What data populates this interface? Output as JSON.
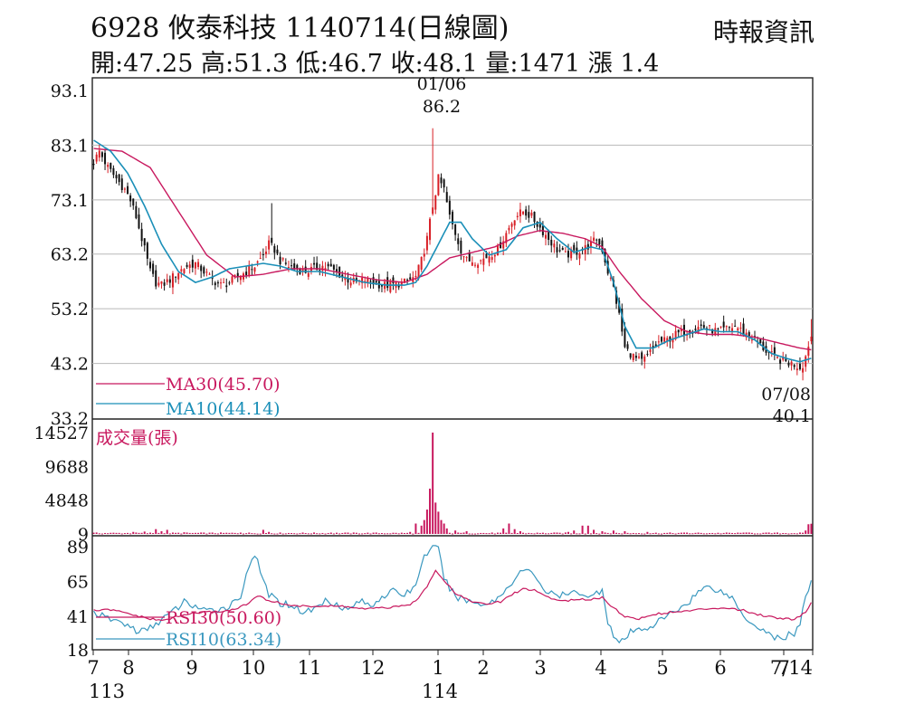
{
  "header": {
    "title": "6928  攸泰科技 1140714(日線圖)",
    "source": "時報資訊",
    "ohlc": "開:47.25 高:51.3 低:46.7 收:48.1 量:1471 漲 1.4"
  },
  "colors": {
    "up": "#d81f26",
    "down": "#111111",
    "ma30": "#c8185e",
    "ma10": "#1a8fb8",
    "volume": "#c8185e",
    "rsi30": "#c8185e",
    "rsi10": "#3a98bf",
    "grid": "#b8b8b8"
  },
  "chart_data": [
    {
      "type": "candlestick",
      "panel": "price",
      "y_ticks": [
        "93.1",
        "83.1",
        "73.1",
        "63.2",
        "53.2",
        "43.2",
        "33.2"
      ],
      "y_tick_values": [
        93.1,
        83.1,
        73.1,
        63.2,
        53.2,
        43.2,
        33.2
      ],
      "ylim": [
        33.2,
        93.1
      ],
      "x_ticks": [
        "7",
        "8",
        "9",
        "10",
        "11",
        "12",
        "1",
        "2",
        "3",
        "4",
        "5",
        "6",
        "7",
        "7/14"
      ],
      "x_subticks": [
        "113",
        "114"
      ],
      "grid": true,
      "annotations": [
        {
          "date": "01/06",
          "value": "86.2",
          "label_date": "01/06",
          "label_value": "86.2"
        },
        {
          "date": "07/08",
          "value": "40.1",
          "label_date": "07/08",
          "label_value": "40.1"
        }
      ],
      "legend": [
        {
          "label": "MA30(45.70)",
          "color": "#c8185e"
        },
        {
          "label": "MA10(44.14)",
          "color": "#1a8fb8"
        }
      ],
      "anchors_close": [
        [
          0,
          80
        ],
        [
          2,
          82
        ],
        [
          5,
          79
        ],
        [
          8,
          77
        ],
        [
          11,
          75
        ],
        [
          13,
          73
        ],
        [
          15,
          70
        ],
        [
          17,
          66
        ],
        [
          20,
          60
        ],
        [
          22,
          58
        ],
        [
          24,
          57.5
        ],
        [
          27,
          58.5
        ],
        [
          30,
          60
        ],
        [
          33,
          61
        ],
        [
          36,
          61.5
        ],
        [
          39,
          60
        ],
        [
          42,
          58.5
        ],
        [
          45,
          57.5
        ],
        [
          48,
          58
        ],
        [
          51,
          59
        ],
        [
          54,
          60
        ],
        [
          57,
          61
        ],
        [
          60,
          63
        ],
        [
          62,
          65
        ],
        [
          64,
          64
        ],
        [
          66,
          62
        ],
        [
          69,
          61
        ],
        [
          72,
          60.5
        ],
        [
          75,
          60
        ],
        [
          78,
          60.5
        ],
        [
          81,
          61
        ],
        [
          84,
          60.5
        ],
        [
          87,
          59.5
        ],
        [
          90,
          58.5
        ],
        [
          93,
          58
        ],
        [
          96,
          58.5
        ],
        [
          99,
          58
        ],
        [
          102,
          57.5
        ],
        [
          105,
          57.5
        ],
        [
          108,
          57.8
        ],
        [
          110,
          58
        ],
        [
          112,
          58.5
        ],
        [
          114,
          59
        ],
        [
          116,
          62
        ],
        [
          118,
          66
        ],
        [
          120,
          72
        ],
        [
          122,
          77
        ],
        [
          124,
          75
        ],
        [
          126,
          70
        ],
        [
          128,
          67
        ],
        [
          130,
          64
        ],
        [
          132,
          62
        ],
        [
          134,
          62
        ],
        [
          137,
          62
        ],
        [
          140,
          63
        ],
        [
          143,
          64
        ],
        [
          146,
          67
        ],
        [
          149,
          70
        ],
        [
          152,
          71
        ],
        [
          155,
          70
        ],
        [
          158,
          68
        ],
        [
          161,
          66
        ],
        [
          164,
          64
        ],
        [
          167,
          63
        ],
        [
          170,
          63.5
        ],
        [
          173,
          64
        ],
        [
          176,
          65
        ],
        [
          178,
          66
        ],
        [
          180,
          64
        ],
        [
          182,
          60
        ],
        [
          184,
          57
        ],
        [
          186,
          52
        ],
        [
          188,
          46
        ],
        [
          190,
          45
        ],
        [
          192,
          44
        ],
        [
          194,
          43.5
        ],
        [
          196,
          44.5
        ],
        [
          198,
          46
        ],
        [
          200,
          47
        ],
        [
          203,
          47.5
        ],
        [
          206,
          48.5
        ],
        [
          209,
          49
        ],
        [
          212,
          49.5
        ],
        [
          215,
          50
        ],
        [
          218,
          49.5
        ],
        [
          221,
          49
        ],
        [
          224,
          49.5
        ],
        [
          227,
          50
        ],
        [
          230,
          49
        ],
        [
          233,
          48
        ],
        [
          236,
          46.5
        ],
        [
          239,
          45
        ],
        [
          242,
          44
        ],
        [
          245,
          43.5
        ],
        [
          248,
          43
        ],
        [
          250,
          42.5
        ],
        [
          251,
          43
        ],
        [
          252,
          44.5
        ],
        [
          253,
          46.7
        ],
        [
          254,
          48.1
        ]
      ],
      "anchors_ma30": [
        [
          0,
          82.5
        ],
        [
          10,
          82
        ],
        [
          20,
          79
        ],
        [
          30,
          71
        ],
        [
          40,
          63
        ],
        [
          50,
          59
        ],
        [
          60,
          59.5
        ],
        [
          70,
          60.5
        ],
        [
          80,
          60.5
        ],
        [
          90,
          59.5
        ],
        [
          100,
          58.5
        ],
        [
          110,
          58
        ],
        [
          118,
          59.5
        ],
        [
          126,
          62.5
        ],
        [
          134,
          63.5
        ],
        [
          142,
          64.5
        ],
        [
          150,
          66.5
        ],
        [
          158,
          67.5
        ],
        [
          166,
          67
        ],
        [
          174,
          66
        ],
        [
          180,
          64.5
        ],
        [
          186,
          60
        ],
        [
          194,
          55
        ],
        [
          202,
          51
        ],
        [
          210,
          49
        ],
        [
          218,
          48.5
        ],
        [
          226,
          48.5
        ],
        [
          234,
          48
        ],
        [
          242,
          47
        ],
        [
          250,
          46
        ],
        [
          254,
          45.7
        ]
      ],
      "anchors_ma10": [
        [
          0,
          84
        ],
        [
          6,
          82
        ],
        [
          12,
          78
        ],
        [
          18,
          72
        ],
        [
          24,
          65
        ],
        [
          30,
          60
        ],
        [
          36,
          58
        ],
        [
          42,
          59
        ],
        [
          48,
          60.5
        ],
        [
          54,
          61
        ],
        [
          60,
          61.5
        ],
        [
          66,
          61
        ],
        [
          72,
          60
        ],
        [
          80,
          60
        ],
        [
          88,
          59
        ],
        [
          96,
          58
        ],
        [
          104,
          57.5
        ],
        [
          110,
          57.5
        ],
        [
          114,
          58
        ],
        [
          118,
          61
        ],
        [
          122,
          65
        ],
        [
          126,
          69
        ],
        [
          130,
          69
        ],
        [
          134,
          66
        ],
        [
          140,
          63
        ],
        [
          146,
          64
        ],
        [
          152,
          68
        ],
        [
          158,
          69
        ],
        [
          164,
          66
        ],
        [
          170,
          63.5
        ],
        [
          176,
          64.5
        ],
        [
          180,
          64
        ],
        [
          184,
          58
        ],
        [
          188,
          50
        ],
        [
          192,
          46
        ],
        [
          198,
          46
        ],
        [
          204,
          47.5
        ],
        [
          210,
          48.5
        ],
        [
          216,
          49.5
        ],
        [
          222,
          49
        ],
        [
          228,
          49
        ],
        [
          234,
          47.5
        ],
        [
          240,
          45
        ],
        [
          246,
          44
        ],
        [
          250,
          43.5
        ],
        [
          254,
          44.14
        ]
      ]
    },
    {
      "type": "bar",
      "panel": "volume",
      "label": "成交量(張)",
      "y_ticks": [
        "14527",
        "9688",
        "4848",
        "9"
      ],
      "y_tick_values": [
        14527,
        9688,
        4848,
        9
      ],
      "ylim": [
        9,
        14527
      ],
      "spikes": [
        [
          14,
          300
        ],
        [
          18,
          350
        ],
        [
          22,
          700
        ],
        [
          24,
          400
        ],
        [
          26,
          600
        ],
        [
          32,
          250
        ],
        [
          52,
          200
        ],
        [
          60,
          600
        ],
        [
          62,
          300
        ],
        [
          84,
          200
        ],
        [
          90,
          200
        ],
        [
          112,
          300
        ],
        [
          114,
          1500
        ],
        [
          116,
          1200
        ],
        [
          117,
          2000
        ],
        [
          118,
          3500
        ],
        [
          119,
          6500
        ],
        [
          120,
          14527
        ],
        [
          121,
          4500
        ],
        [
          122,
          3200
        ],
        [
          123,
          2000
        ],
        [
          124,
          1500
        ],
        [
          125,
          800
        ],
        [
          128,
          500
        ],
        [
          132,
          400
        ],
        [
          145,
          800
        ],
        [
          147,
          1500
        ],
        [
          149,
          700
        ],
        [
          151,
          400
        ],
        [
          168,
          300
        ],
        [
          170,
          500
        ],
        [
          173,
          1200
        ],
        [
          175,
          1200
        ],
        [
          177,
          600
        ],
        [
          180,
          400
        ],
        [
          184,
          500
        ],
        [
          188,
          400
        ],
        [
          196,
          300
        ],
        [
          210,
          200
        ],
        [
          230,
          200
        ],
        [
          252,
          500
        ],
        [
          253,
          1400
        ],
        [
          254,
          1471
        ]
      ]
    },
    {
      "type": "line",
      "panel": "rsi",
      "y_ticks": [
        "89",
        "65",
        "41",
        "18"
      ],
      "y_tick_values": [
        89,
        65,
        41,
        18
      ],
      "ylim": [
        18,
        89
      ],
      "legend": [
        {
          "label": "RSI30(50.60)",
          "color": "#c8185e"
        },
        {
          "label": "RSI10(63.34)",
          "color": "#3a98bf"
        }
      ],
      "anchors_rsi30": [
        [
          0,
          45
        ],
        [
          6,
          45.5
        ],
        [
          12,
          43
        ],
        [
          18,
          40
        ],
        [
          24,
          38
        ],
        [
          30,
          41
        ],
        [
          36,
          43.5
        ],
        [
          42,
          44
        ],
        [
          48,
          45
        ],
        [
          54,
          49
        ],
        [
          58,
          55
        ],
        [
          62,
          52
        ],
        [
          66,
          50
        ],
        [
          72,
          48
        ],
        [
          80,
          48
        ],
        [
          88,
          48
        ],
        [
          96,
          46
        ],
        [
          104,
          47
        ],
        [
          110,
          48
        ],
        [
          114,
          51
        ],
        [
          118,
          62
        ],
        [
          121,
          73
        ],
        [
          124,
          66
        ],
        [
          128,
          57
        ],
        [
          132,
          53
        ],
        [
          136,
          50
        ],
        [
          140,
          49.5
        ],
        [
          144,
          51
        ],
        [
          148,
          56
        ],
        [
          152,
          60
        ],
        [
          156,
          59
        ],
        [
          160,
          55
        ],
        [
          164,
          52
        ],
        [
          170,
          52
        ],
        [
          176,
          53
        ],
        [
          180,
          54
        ],
        [
          184,
          47
        ],
        [
          188,
          41
        ],
        [
          192,
          39
        ],
        [
          196,
          41
        ],
        [
          200,
          43
        ],
        [
          206,
          44
        ],
        [
          212,
          45
        ],
        [
          218,
          46.5
        ],
        [
          224,
          47
        ],
        [
          230,
          45
        ],
        [
          236,
          42
        ],
        [
          242,
          40
        ],
        [
          248,
          39
        ],
        [
          252,
          44
        ],
        [
          254,
          50.6
        ]
      ],
      "anchors_rsi10": [
        [
          0,
          44
        ],
        [
          4,
          40
        ],
        [
          8,
          38
        ],
        [
          12,
          35
        ],
        [
          16,
          30
        ],
        [
          20,
          33
        ],
        [
          24,
          39
        ],
        [
          28,
          44
        ],
        [
          32,
          51
        ],
        [
          36,
          48
        ],
        [
          40,
          44
        ],
        [
          44,
          46
        ],
        [
          48,
          48
        ],
        [
          52,
          55
        ],
        [
          54,
          70
        ],
        [
          56,
          82
        ],
        [
          58,
          78
        ],
        [
          60,
          66
        ],
        [
          62,
          56
        ],
        [
          66,
          50
        ],
        [
          70,
          49
        ],
        [
          74,
          44
        ],
        [
          78,
          46
        ],
        [
          82,
          52
        ],
        [
          86,
          50
        ],
        [
          90,
          45
        ],
        [
          94,
          52
        ],
        [
          98,
          48
        ],
        [
          102,
          55
        ],
        [
          106,
          58
        ],
        [
          110,
          56
        ],
        [
          114,
          62
        ],
        [
          116,
          78
        ],
        [
          118,
          85
        ],
        [
          120,
          88
        ],
        [
          122,
          87
        ],
        [
          124,
          68
        ],
        [
          126,
          60
        ],
        [
          128,
          55
        ],
        [
          132,
          52
        ],
        [
          136,
          50
        ],
        [
          140,
          50
        ],
        [
          144,
          55
        ],
        [
          148,
          65
        ],
        [
          152,
          73
        ],
        [
          156,
          70
        ],
        [
          160,
          58
        ],
        [
          164,
          55
        ],
        [
          168,
          56
        ],
        [
          172,
          58
        ],
        [
          176,
          54
        ],
        [
          180,
          60
        ],
        [
          182,
          38
        ],
        [
          184,
          28
        ],
        [
          186,
          22
        ],
        [
          188,
          25
        ],
        [
          190,
          30
        ],
        [
          194,
          32
        ],
        [
          198,
          35
        ],
        [
          202,
          40
        ],
        [
          206,
          45
        ],
        [
          210,
          50
        ],
        [
          214,
          58
        ],
        [
          218,
          62
        ],
        [
          222,
          58
        ],
        [
          226,
          54
        ],
        [
          228,
          47
        ],
        [
          232,
          38
        ],
        [
          236,
          33
        ],
        [
          240,
          28
        ],
        [
          244,
          24
        ],
        [
          246,
          30
        ],
        [
          248,
          29
        ],
        [
          250,
          35
        ],
        [
          252,
          55
        ],
        [
          254,
          63.34
        ]
      ]
    }
  ]
}
